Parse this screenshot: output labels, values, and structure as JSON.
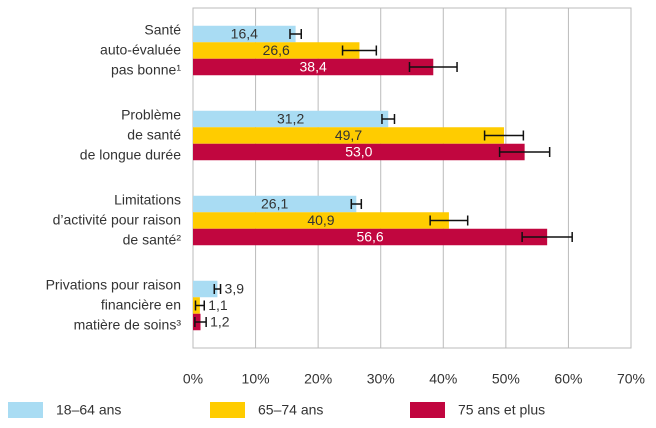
{
  "chart_data": {
    "type": "bar",
    "orientation": "horizontal",
    "categories": [
      "Santé\nauto-évaluée\npas bonne¹",
      "Problème\nde santé\nde longue durée",
      "Limitations\nd’activité pour raison\nde santé²",
      "Privations pour raison\nfinancière en\nmatière de soins³"
    ],
    "series": [
      {
        "name": "18–64 ans",
        "color": "#a9dcf3",
        "label_color": "#333333",
        "values": [
          16.4,
          31.2,
          26.1,
          3.9
        ],
        "value_labels": [
          "16,4",
          "31,2",
          "26,1",
          "3,9"
        ],
        "errors": [
          0.9,
          1.0,
          0.8,
          0.5
        ]
      },
      {
        "name": "65–74 ans",
        "color": "#ffcc00",
        "label_color": "#333333",
        "values": [
          26.6,
          49.7,
          40.9,
          1.1
        ],
        "value_labels": [
          "26,6",
          "49,7",
          "40,9",
          "1,1"
        ],
        "errors": [
          2.7,
          3.1,
          3.0,
          0.7
        ]
      },
      {
        "name": "75 ans et plus",
        "color": "#c1063f",
        "label_color": "#ffffff",
        "values": [
          38.4,
          53.0,
          56.6,
          1.2
        ],
        "value_labels": [
          "38,4",
          "53,0",
          "56,6",
          "1,2"
        ],
        "errors": [
          3.8,
          4.0,
          4.0,
          0.9
        ]
      }
    ],
    "xlim": [
      0,
      70
    ],
    "xticks": [
      {
        "value": 0,
        "label": "0%"
      },
      {
        "value": 10,
        "label": "10%"
      },
      {
        "value": 20,
        "label": "20%"
      },
      {
        "value": 30,
        "label": "30%"
      },
      {
        "value": 40,
        "label": "40%"
      },
      {
        "value": 50,
        "label": "50%"
      },
      {
        "value": 60,
        "label": "60%"
      },
      {
        "value": 70,
        "label": "70%"
      }
    ],
    "grid": true,
    "legend": "bottom"
  }
}
